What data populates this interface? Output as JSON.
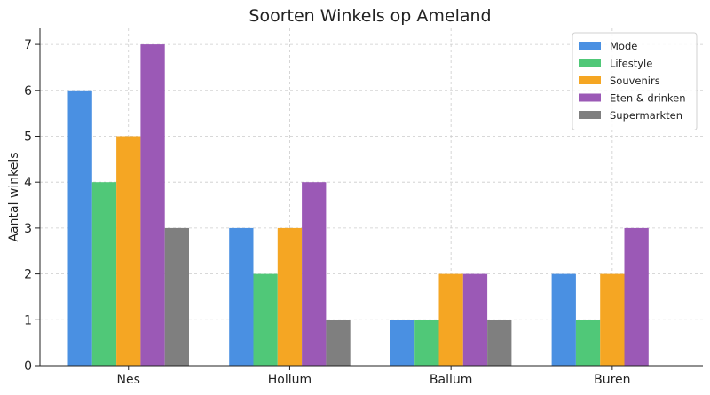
{
  "chart_data": {
    "type": "bar",
    "title": "Soorten Winkels op Ameland",
    "xlabel": "",
    "ylabel": "Aantal winkels",
    "categories": [
      "Nes",
      "Hollum",
      "Ballum",
      "Buren"
    ],
    "series": [
      {
        "name": "Mode",
        "color": "#4a90e2",
        "values": [
          6,
          3,
          1,
          2
        ]
      },
      {
        "name": "Lifestyle",
        "color": "#50c878",
        "values": [
          4,
          2,
          1,
          1
        ]
      },
      {
        "name": "Souvenirs",
        "color": "#f5a623",
        "values": [
          5,
          3,
          2,
          2
        ]
      },
      {
        "name": "Eten & drinken",
        "color": "#9b59b6",
        "values": [
          7,
          4,
          2,
          3
        ]
      },
      {
        "name": "Supermarkten",
        "color": "#7f7f7f",
        "values": [
          3,
          1,
          1,
          0
        ]
      }
    ],
    "ylim": [
      0,
      7.35
    ],
    "yticks": [
      "0",
      "1",
      "2",
      "3",
      "4",
      "5",
      "6",
      "7"
    ],
    "grid": true,
    "legend_position": "top-right"
  }
}
